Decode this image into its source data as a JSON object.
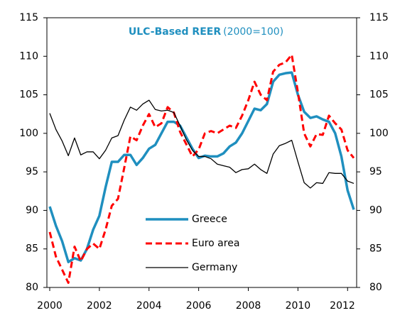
{
  "chart_data": {
    "type": "line",
    "title": "ULC-Based REER",
    "subtitle": "(2000=100)",
    "x": [
      2000,
      2000.25,
      2000.5,
      2000.75,
      2001,
      2001.25,
      2001.5,
      2001.75,
      2002,
      2002.25,
      2002.5,
      2002.75,
      2003,
      2003.25,
      2003.5,
      2003.75,
      2004,
      2004.25,
      2004.5,
      2004.75,
      2005,
      2005.25,
      2005.5,
      2005.75,
      2006,
      2006.25,
      2006.5,
      2006.75,
      2007,
      2007.25,
      2007.5,
      2007.75,
      2008,
      2008.25,
      2008.5,
      2008.75,
      2009,
      2009.25,
      2009.5,
      2009.75,
      2010,
      2010.25,
      2010.5,
      2010.75,
      2011,
      2011.25,
      2011.5,
      2011.75,
      2012,
      2012.25
    ],
    "series": [
      {
        "name": "Greece",
        "color": "#1f8fbf",
        "style": "solid",
        "width": 3.5,
        "values": [
          90.5,
          88,
          86,
          83.3,
          83.8,
          83.5,
          85,
          87.5,
          89.3,
          93,
          96.3,
          96.3,
          97.2,
          97.2,
          95.9,
          96.8,
          98,
          98.5,
          100,
          101.5,
          101.5,
          101,
          99.5,
          98,
          96.8,
          97.1,
          97,
          97,
          97.4,
          98.3,
          98.8,
          100,
          101.6,
          103.2,
          103,
          103.8,
          106.7,
          107.6,
          107.8,
          107.9,
          105,
          102.8,
          102,
          102.2,
          101.8,
          101.5,
          100,
          97,
          92.6,
          90.1
        ]
      },
      {
        "name": "Euro area",
        "color": "#ff0000",
        "style": "dashed",
        "width": 3,
        "values": [
          87.2,
          84,
          82.3,
          80.6,
          85.3,
          83.4,
          85,
          85.7,
          85,
          87.5,
          90.6,
          91.5,
          95.5,
          99.6,
          99.1,
          101,
          102.5,
          100.8,
          101.3,
          103.4,
          102.7,
          100.2,
          98.6,
          97,
          97.9,
          100,
          100.3,
          100,
          100.5,
          101,
          100.7,
          102.3,
          104.3,
          106.7,
          105,
          104.3,
          108,
          108.9,
          109.2,
          110.2,
          105.3,
          100,
          98.3,
          99.9,
          99.8,
          102.3,
          101.3,
          100.5,
          97.8,
          96.8
        ]
      },
      {
        "name": "Germany",
        "color": "#000000",
        "style": "solid",
        "width": 1.3,
        "values": [
          102.6,
          100.5,
          99,
          97.1,
          99.4,
          97.2,
          97.6,
          97.6,
          96.7,
          97.8,
          99.4,
          99.7,
          101.7,
          103.4,
          103,
          103.8,
          104.3,
          103.1,
          102.9,
          103,
          102.7,
          101,
          99.2,
          97.8,
          97,
          97,
          96.7,
          96,
          95.8,
          95.6,
          94.9,
          95.3,
          95.4,
          96,
          95.3,
          94.8,
          97.3,
          98.4,
          98.7,
          99.1,
          96.3,
          93.6,
          92.9,
          93.6,
          93.5,
          94.9,
          94.8,
          94.8,
          93.8,
          93.5
        ]
      }
    ],
    "xlim": [
      2000,
      2012.25
    ],
    "xticks": [
      2000,
      2002,
      2004,
      2006,
      2008,
      2010,
      2012
    ],
    "ylim": [
      80,
      115
    ],
    "yticks": [
      80,
      85,
      90,
      95,
      100,
      105,
      110,
      115
    ],
    "y2lim": [
      80,
      115
    ],
    "y2ticks": [
      80,
      85,
      90,
      95,
      100,
      105,
      110,
      115
    ],
    "grid": false,
    "legend": "lower center"
  }
}
